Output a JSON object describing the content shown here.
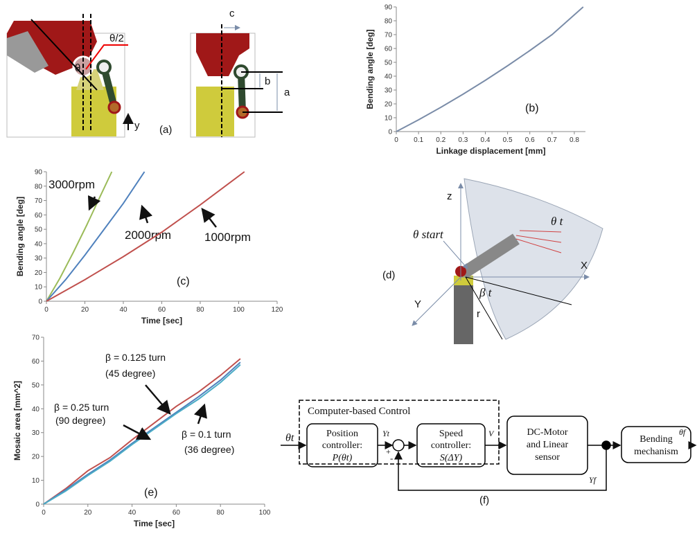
{
  "chart_data": [
    {
      "type": "line",
      "xlabel": "Linkage displacement [mm]",
      "ylabel": "Bending angle [deg]",
      "xlim": [
        0,
        0.85
      ],
      "xticks": [
        0,
        0.1,
        0.2,
        0.3,
        0.4,
        0.5,
        0.6,
        0.7,
        0.8
      ],
      "ylim": [
        0,
        90
      ],
      "yticks": [
        0,
        10,
        20,
        30,
        40,
        50,
        60,
        70,
        80,
        90
      ],
      "series": [
        {
          "color": "#7a8ca8",
          "x": [
            0,
            0.1,
            0.2,
            0.3,
            0.4,
            0.5,
            0.6,
            0.7,
            0.84
          ],
          "values": [
            0,
            8.5,
            17.5,
            27,
            37,
            47.5,
            58.5,
            70,
            90
          ]
        }
      ],
      "annotations": [
        "(b)"
      ]
    },
    {
      "type": "line",
      "xlabel": "Time [sec]",
      "ylabel": "Bending angle [deg]",
      "xlim": [
        0,
        120
      ],
      "xticks": [
        0,
        20,
        40,
        60,
        80,
        100,
        120
      ],
      "ylim": [
        0,
        90
      ],
      "yticks": [
        0,
        10,
        20,
        30,
        40,
        50,
        60,
        70,
        80,
        90
      ],
      "series": [
        {
          "name": "3000rpm",
          "color": "#9bbb59",
          "x": [
            0,
            7,
            14,
            21,
            28,
            34
          ],
          "values": [
            0,
            16,
            34,
            53,
            73,
            90
          ]
        },
        {
          "name": "2000rpm",
          "color": "#4f81bd",
          "x": [
            0,
            10,
            20,
            30,
            40,
            51
          ],
          "values": [
            0,
            15,
            32,
            50,
            68,
            90
          ]
        },
        {
          "name": "1000rpm",
          "color": "#c0504d",
          "x": [
            0,
            20,
            40,
            60,
            80,
            103
          ],
          "values": [
            0,
            15,
            31,
            48,
            67,
            90
          ]
        }
      ],
      "annotations": [
        "(c)"
      ]
    },
    {
      "type": "line",
      "xlabel": "Time [sec]",
      "ylabel": "Mosaic area [mm^2]",
      "xlim": [
        0,
        100
      ],
      "xticks": [
        0,
        20,
        40,
        60,
        80,
        100
      ],
      "ylim": [
        0,
        70
      ],
      "yticks": [
        0,
        10,
        20,
        30,
        40,
        50,
        60,
        70
      ],
      "series": [
        {
          "name": "β = 0.25 turn",
          "color": "#c0504d",
          "x": [
            0,
            10,
            20,
            30,
            40,
            50,
            60,
            70,
            80,
            89
          ],
          "values": [
            0,
            6.5,
            14,
            19.5,
            27,
            34,
            41,
            47,
            54,
            61
          ]
        },
        {
          "name": "β = 0.125 turn",
          "color": "#4f81bd",
          "x": [
            0,
            10,
            20,
            30,
            40,
            50,
            60,
            70,
            80,
            89
          ],
          "values": [
            0,
            6,
            12.5,
            18.5,
            25.5,
            32,
            38.5,
            45,
            52,
            59.5
          ]
        },
        {
          "name": "β = 0.1 turn",
          "color": "#4bacc6",
          "x": [
            0,
            10,
            20,
            30,
            40,
            50,
            60,
            70,
            80,
            89
          ],
          "values": [
            0,
            5.5,
            12,
            18,
            25,
            31.5,
            38,
            44,
            51,
            58.5
          ]
        }
      ],
      "annotations": [
        "(90 degree)",
        "(45 degree)",
        "(36 degree)",
        "(e)"
      ]
    }
  ],
  "diagram_a": {
    "theta": "θ",
    "half_theta": "θ/2",
    "y": "y",
    "label": "(a)",
    "c": "c",
    "b": "b",
    "a": "a"
  },
  "diagram_d": {
    "z": "z",
    "theta_start": "θ start",
    "theta_t": "θ t",
    "x": "X",
    "label": "(d)",
    "y": "Y",
    "beta_t": "β t",
    "r": "r"
  },
  "diagram_f": {
    "group": "Computer-based Control",
    "input": "θt",
    "position_1": "Position",
    "position_2": "controller:",
    "position_3": "P(θt)",
    "yt": "Yt",
    "plus": "+",
    "minus": "-",
    "speed_1": "Speed",
    "speed_2": "controller:",
    "speed_3": "S(ΔY)",
    "v": "V",
    "motor_1": "DC-Motor",
    "motor_2": "and Linear",
    "motor_3": "sensor",
    "yf": "Yf",
    "bend_1": "Bending",
    "bend_2": "mechanism",
    "output": "θf",
    "label": "(f)"
  }
}
